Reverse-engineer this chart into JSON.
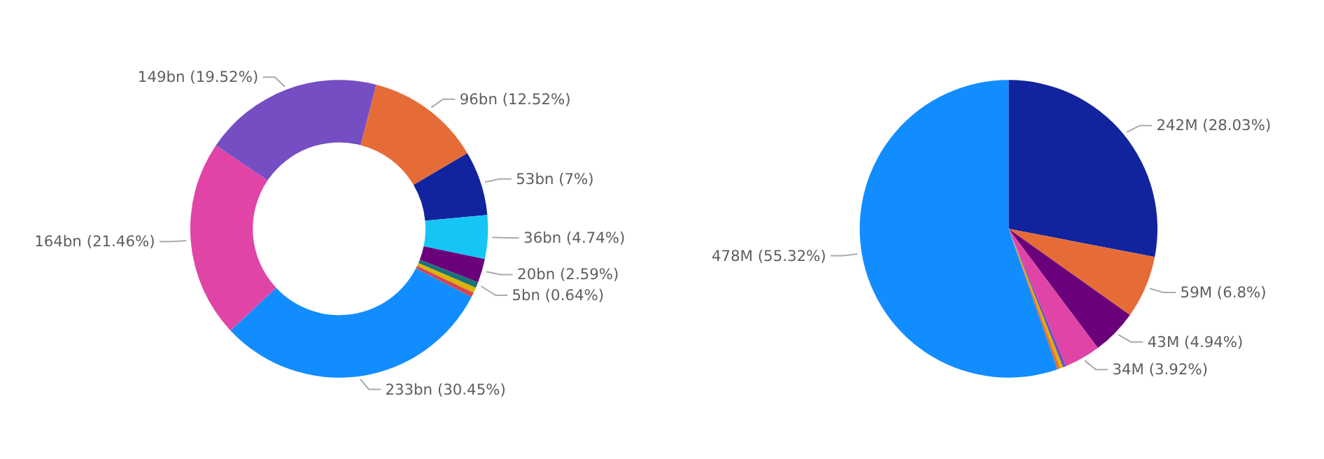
{
  "chart_data": [
    {
      "type": "donut",
      "categories": [
        null,
        null,
        null,
        null,
        null,
        null,
        null,
        null,
        null,
        null
      ],
      "values": [
        12.52,
        7,
        4.74,
        2.59,
        0.64,
        0.58,
        0.5,
        30.45,
        21.46,
        19.52
      ],
      "colors": [
        "#e66c37",
        "#12239e",
        "#15c6f4",
        "#6b007b",
        "#197278",
        "#d9b300",
        "#d64550",
        "#118dff",
        "#e044a7",
        "#744ec2"
      ],
      "value_labels": [
        "96bn (12.52%)",
        "53bn (7%)",
        "36bn (4.74%)",
        "20bn (2.59%)",
        "5bn (0.64%)",
        null,
        null,
        "233bn (30.45%)",
        "164bn (21.46%)",
        "149bn (19.52%)"
      ]
    },
    {
      "type": "pie",
      "categories": [
        null,
        null,
        null,
        null,
        null,
        null,
        null,
        null
      ],
      "values": [
        28.03,
        6.8,
        4.94,
        3.92,
        0.35,
        0.34,
        0.3,
        55.32
      ],
      "colors": [
        "#12239e",
        "#e66c37",
        "#6b007b",
        "#e044a7",
        "#744ec2",
        "#d9b300",
        "#e66c37",
        "#118dff"
      ],
      "value_labels": [
        "242M (28.03%)",
        "59M (6.8%)",
        "43M (4.94%)",
        "34M (3.92%)",
        null,
        null,
        null,
        "478M (55.32%)"
      ]
    }
  ]
}
